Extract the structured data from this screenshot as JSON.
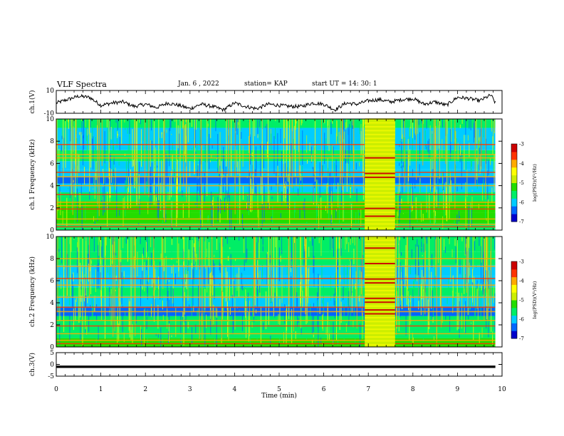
{
  "header": {
    "title": "VLF Spectra",
    "date": "Jan. 6 , 2022",
    "station": "station= KAP",
    "start": "start UT = 14: 30: 1"
  },
  "chart_data": [
    {
      "type": "line",
      "panel": "ch1-waveform",
      "ylabel": "ch.1(V)",
      "ylim": [
        -10,
        10
      ],
      "yticks": [
        "10",
        "-10"
      ],
      "xlim": [
        0,
        10
      ],
      "x_end": 9.85,
      "series": [
        {
          "x": [
            0,
            0.25,
            0.5,
            0.75,
            1,
            1.25,
            1.5,
            1.75,
            2,
            2.25,
            2.5,
            2.75,
            3,
            3.25,
            3.5,
            3.75,
            4,
            4.25,
            4.5,
            4.75,
            5,
            5.25,
            5.5,
            5.75,
            6,
            6.25,
            6.5,
            6.75,
            7,
            7.25,
            7.5,
            7.75,
            8,
            8.25,
            8.5,
            8.75,
            9,
            9.25,
            9.5,
            9.75,
            9.85
          ],
          "values": [
            -1,
            2,
            5,
            4,
            -3,
            -1,
            0,
            -4,
            -2,
            -5,
            -1,
            -3,
            -6,
            -2,
            -4,
            -7,
            -1,
            -4,
            -6,
            -2,
            -3,
            -4,
            -4,
            -1,
            -2,
            -7,
            -1,
            -2,
            1,
            2,
            0,
            2,
            3,
            -2,
            0,
            -3,
            4,
            3,
            1,
            6,
            -1
          ]
        }
      ]
    },
    {
      "type": "heatmap",
      "panel": "ch1-spectrogram",
      "ylabel": "ch.1 Frequency (kHz)",
      "ylim": [
        0,
        10
      ],
      "yticks": [
        "0",
        "2",
        "4",
        "6",
        "8",
        "10"
      ],
      "xlim": [
        0,
        10
      ],
      "x_end": 9.85,
      "burst_interval_min": [
        6.92,
        7.6
      ],
      "colorbar": {
        "label": "log(PSD)(V²/Hz)",
        "range": [
          -7,
          -3
        ],
        "ticks": [
          "-3",
          "-4",
          "-5",
          "-6",
          "-7"
        ],
        "colors": [
          "#0000cc",
          "#0066ff",
          "#00ccff",
          "#00ee66",
          "#22dd00",
          "#ccee00",
          "#ffff00",
          "#ffaa00",
          "#ff3300",
          "#cc0000"
        ]
      }
    },
    {
      "type": "heatmap",
      "panel": "ch2-spectrogram",
      "ylabel": "ch.2 Frequency (kHz)",
      "ylim": [
        0,
        10
      ],
      "yticks": [
        "0",
        "2",
        "4",
        "6",
        "8",
        "10"
      ],
      "xlim": [
        0,
        10
      ],
      "x_end": 9.85,
      "burst_interval_min": [
        6.92,
        7.6
      ],
      "colorbar": {
        "label": "log(PSD)(V²/Hz)",
        "range": [
          -7,
          -3
        ],
        "ticks": [
          "-3",
          "-4",
          "-5",
          "-6",
          "-7"
        ],
        "colors": [
          "#0000cc",
          "#0066ff",
          "#00ccff",
          "#00ee66",
          "#22dd00",
          "#ccee00",
          "#ffff00",
          "#ffaa00",
          "#ff3300",
          "#cc0000"
        ]
      }
    },
    {
      "type": "line",
      "panel": "ch3-waveform",
      "ylabel": "ch.3(V)",
      "ylim": [
        -5,
        5
      ],
      "yticks": [
        "5",
        "0",
        "-5"
      ],
      "xlim": [
        0,
        10
      ],
      "x_end": 9.85,
      "band": [
        -1.5,
        -0.5
      ]
    }
  ],
  "xaxis": {
    "label": "Time (min)",
    "ticks": [
      "0",
      "1",
      "2",
      "3",
      "4",
      "5",
      "6",
      "7",
      "8",
      "9",
      "10"
    ]
  }
}
